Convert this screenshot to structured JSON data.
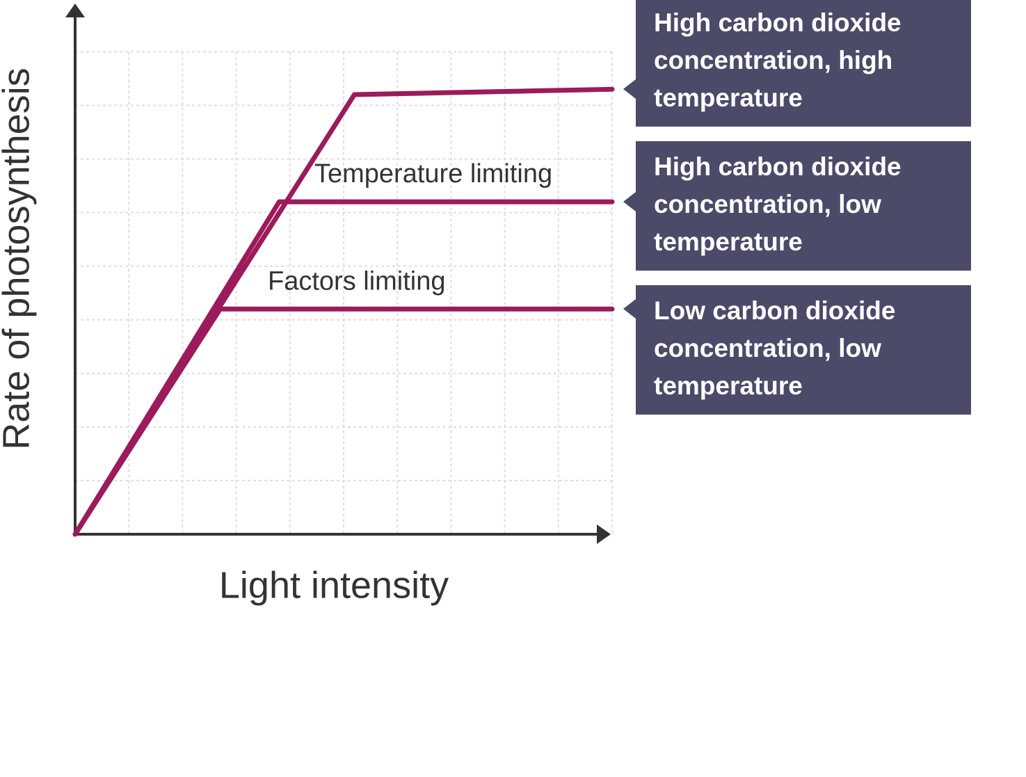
{
  "chart_data": {
    "type": "line",
    "x_label": "Light intensity",
    "y_label": "Rate of photosynthesis",
    "annotations": [
      "Temperature limiting",
      "Factors limiting"
    ],
    "xlim": [
      0,
      10
    ],
    "ylim": [
      0,
      9.9
    ],
    "xticks": [
      1,
      2,
      3,
      4,
      5,
      6,
      7,
      8,
      9,
      10
    ],
    "yticks": [
      1,
      2,
      3,
      4,
      5,
      6,
      7,
      8,
      9
    ],
    "grid": true,
    "series": [
      {
        "name": "High carbon dioxide concentration, high temperature",
        "color": "#9c1b5b",
        "x": [
          0,
          5.2,
          10
        ],
        "values": [
          0,
          8.2,
          8.3
        ]
      },
      {
        "name": "High carbon dioxide concentration, low temperature",
        "color": "#9c1b5b",
        "x": [
          0,
          3.8,
          10
        ],
        "values": [
          0,
          6.2,
          6.2
        ]
      },
      {
        "name": "Low carbon dioxide concentration, low temperature",
        "color": "#9c1b5b",
        "x": [
          0,
          2.7,
          10
        ],
        "values": [
          0,
          4.2,
          4.2
        ]
      }
    ]
  }
}
